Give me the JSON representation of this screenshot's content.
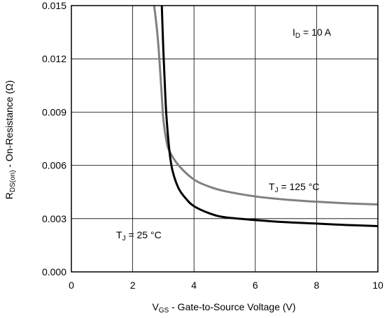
{
  "chart_data": {
    "type": "line",
    "xlabel_main": "V",
    "xlabel_sub": "GS",
    "xlabel_rest": " - Gate-to-Source Voltage (V)",
    "ylabel_main": "R",
    "ylabel_sub": "DS(on)",
    "ylabel_rest": " - On-Resistance (Ω)",
    "xlim": [
      0,
      10
    ],
    "ylim": [
      0,
      0.015
    ],
    "x_ticks": [
      "0",
      "2",
      "4",
      "6",
      "8",
      "10"
    ],
    "x_tick_values": [
      0,
      2,
      4,
      6,
      8,
      10
    ],
    "y_ticks": [
      "0.000",
      "0.003",
      "0.006",
      "0.009",
      "0.012",
      "0.015"
    ],
    "y_tick_values": [
      0,
      0.003,
      0.006,
      0.009,
      0.012,
      0.015
    ],
    "grid": true,
    "annotations": [
      {
        "main": "I",
        "sub": "D",
        "rest": " = 10 A"
      },
      {
        "main": "T",
        "sub": "J",
        "rest": " = 125 °C"
      },
      {
        "main": "T",
        "sub": "J",
        "rest": " = 25 °C"
      }
    ],
    "series": [
      {
        "color": "#000000",
        "x": [
          2.95,
          3.0,
          3.05,
          3.1,
          3.2,
          3.3,
          3.5,
          3.75,
          4.0,
          4.5,
          5.0,
          6.0,
          7.0,
          8.0,
          9.0,
          10.0
        ],
        "y": [
          0.015,
          0.0125,
          0.0105,
          0.0088,
          0.0068,
          0.0057,
          0.0047,
          0.0041,
          0.0037,
          0.0033,
          0.00308,
          0.00292,
          0.0028,
          0.00272,
          0.00264,
          0.00258
        ]
      },
      {
        "color": "#808080",
        "x": [
          2.7,
          2.75,
          2.8,
          2.85,
          2.9,
          2.95,
          3.0,
          3.1,
          3.2,
          3.5,
          4.0,
          4.5,
          5.0,
          6.0,
          7.0,
          8.0,
          9.0,
          10.0
        ],
        "y": [
          0.015,
          0.0143,
          0.0135,
          0.0125,
          0.0112,
          0.0099,
          0.0086,
          0.0074,
          0.0068,
          0.006,
          0.0052,
          0.0048,
          0.00455,
          0.00425,
          0.00407,
          0.00395,
          0.00386,
          0.0038
        ]
      }
    ]
  }
}
